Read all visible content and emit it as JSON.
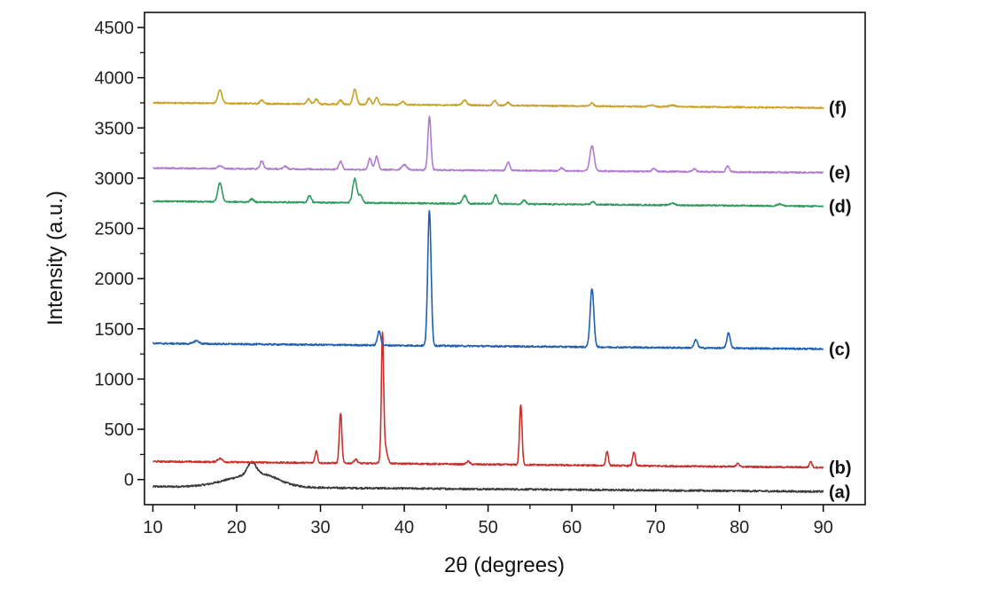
{
  "chart_data": {
    "type": "line",
    "xlabel": "2θ (degrees)",
    "ylabel": "Intensity (a.u.)",
    "xlim": [
      9,
      95
    ],
    "ylim": [
      -250,
      4650
    ],
    "xticks": [
      10,
      20,
      30,
      40,
      50,
      60,
      70,
      80,
      90
    ],
    "yticks": [
      0,
      500,
      1000,
      1500,
      2000,
      2500,
      3000,
      3500,
      4000,
      4500
    ],
    "grid": false,
    "legend": "labels at right end of each curve",
    "series": [
      {
        "name": "(a)",
        "color": "#3a3a3a",
        "baseline": -120,
        "start_offset": 50,
        "noise": 9,
        "peaks": [
          [
            21.8,
            120,
            0.5
          ],
          [
            21.5,
            110,
            3.0
          ],
          [
            23.5,
            40,
            1.5
          ]
        ]
      },
      {
        "name": "(b)",
        "color": "#c9302c",
        "baseline": 120,
        "start_offset": 60,
        "noise": 8,
        "peaks": [
          [
            18.0,
            35,
            0.3
          ],
          [
            29.5,
            120,
            0.15
          ],
          [
            32.4,
            500,
            0.15
          ],
          [
            34.2,
            40,
            0.2
          ],
          [
            37.4,
            1150,
            0.13
          ],
          [
            37.6,
            200,
            0.3
          ],
          [
            47.6,
            30,
            0.2
          ],
          [
            53.9,
            600,
            0.15
          ],
          [
            64.2,
            140,
            0.15
          ],
          [
            67.4,
            140,
            0.15
          ],
          [
            79.8,
            40,
            0.15
          ],
          [
            88.5,
            60,
            0.15
          ]
        ]
      },
      {
        "name": "(c)",
        "color": "#1f5fb0",
        "baseline": 1300,
        "start_offset": 55,
        "noise": 8,
        "peaks": [
          [
            15.2,
            30,
            0.3
          ],
          [
            37.0,
            140,
            0.2
          ],
          [
            43.0,
            1350,
            0.2
          ],
          [
            62.4,
            580,
            0.22
          ],
          [
            74.8,
            80,
            0.2
          ],
          [
            78.7,
            150,
            0.2
          ]
        ]
      },
      {
        "name": "(d)",
        "color": "#2e9a5e",
        "baseline": 2720,
        "start_offset": 50,
        "noise": 7,
        "peaks": [
          [
            18.0,
            190,
            0.25
          ],
          [
            21.8,
            30,
            0.2
          ],
          [
            28.7,
            70,
            0.2
          ],
          [
            34.1,
            240,
            0.25
          ],
          [
            34.8,
            80,
            0.2
          ],
          [
            47.2,
            80,
            0.25
          ],
          [
            50.9,
            90,
            0.2
          ],
          [
            54.3,
            40,
            0.2
          ],
          [
            62.5,
            30,
            0.2
          ],
          [
            72.0,
            20,
            0.3
          ],
          [
            84.8,
            20,
            0.3
          ]
        ]
      },
      {
        "name": "(e)",
        "color": "#b07ad0",
        "baseline": 3055,
        "start_offset": 45,
        "noise": 7,
        "peaks": [
          [
            18.0,
            30,
            0.3
          ],
          [
            23.0,
            80,
            0.2
          ],
          [
            25.8,
            30,
            0.2
          ],
          [
            32.4,
            80,
            0.2
          ],
          [
            35.9,
            110,
            0.2
          ],
          [
            36.7,
            130,
            0.2
          ],
          [
            40.0,
            50,
            0.3
          ],
          [
            43.0,
            530,
            0.18
          ],
          [
            52.4,
            80,
            0.2
          ],
          [
            58.8,
            30,
            0.2
          ],
          [
            62.4,
            250,
            0.25
          ],
          [
            69.8,
            30,
            0.2
          ],
          [
            74.6,
            30,
            0.2
          ],
          [
            78.6,
            60,
            0.2
          ]
        ]
      },
      {
        "name": "(f)",
        "color": "#c9a227",
        "baseline": 3700,
        "start_offset": 50,
        "noise": 7,
        "peaks": [
          [
            18.0,
            130,
            0.25
          ],
          [
            23.0,
            35,
            0.2
          ],
          [
            28.6,
            50,
            0.2
          ],
          [
            29.5,
            50,
            0.2
          ],
          [
            32.4,
            40,
            0.2
          ],
          [
            34.1,
            150,
            0.22
          ],
          [
            35.8,
            60,
            0.2
          ],
          [
            36.7,
            70,
            0.2
          ],
          [
            39.8,
            30,
            0.2
          ],
          [
            47.2,
            50,
            0.25
          ],
          [
            50.8,
            50,
            0.2
          ],
          [
            52.4,
            30,
            0.2
          ],
          [
            62.4,
            30,
            0.2
          ],
          [
            69.5,
            15,
            0.3
          ],
          [
            72.0,
            15,
            0.3
          ]
        ]
      }
    ]
  }
}
